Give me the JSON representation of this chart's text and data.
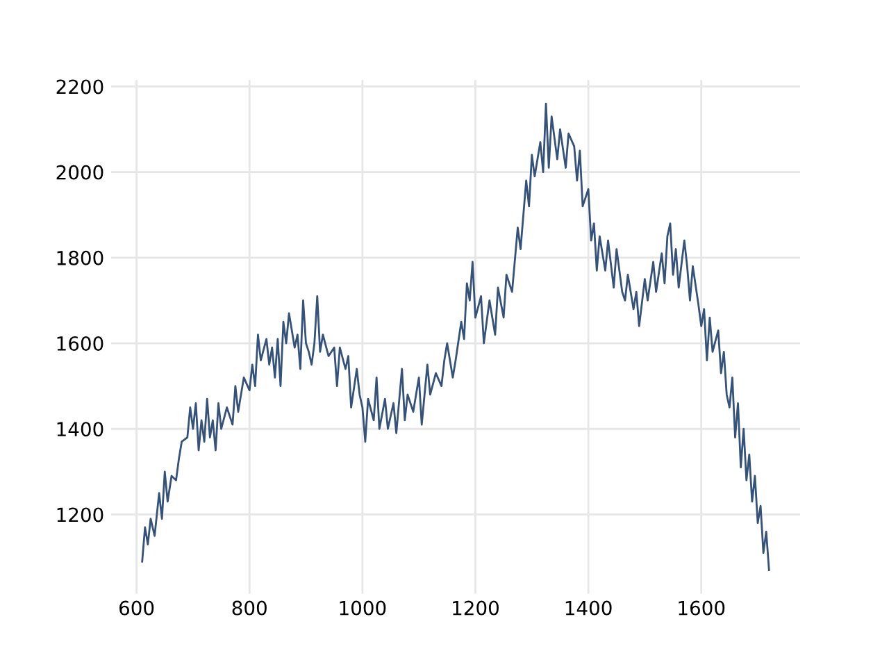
{
  "chart_data": {
    "type": "line",
    "x": [
      610,
      615,
      620,
      625,
      632,
      640,
      645,
      650,
      655,
      662,
      670,
      675,
      680,
      690,
      695,
      700,
      705,
      710,
      715,
      720,
      725,
      730,
      735,
      740,
      745,
      750,
      760,
      770,
      775,
      780,
      790,
      800,
      805,
      810,
      815,
      820,
      830,
      835,
      840,
      845,
      850,
      855,
      860,
      865,
      870,
      880,
      885,
      890,
      895,
      900,
      905,
      910,
      915,
      920,
      925,
      930,
      940,
      950,
      955,
      960,
      970,
      975,
      980,
      990,
      995,
      1000,
      1005,
      1010,
      1020,
      1025,
      1030,
      1040,
      1045,
      1055,
      1060,
      1070,
      1075,
      1080,
      1090,
      1100,
      1105,
      1115,
      1120,
      1130,
      1140,
      1145,
      1150,
      1160,
      1165,
      1175,
      1180,
      1185,
      1190,
      1195,
      1200,
      1210,
      1215,
      1225,
      1235,
      1240,
      1250,
      1255,
      1260,
      1265,
      1275,
      1280,
      1290,
      1295,
      1300,
      1305,
      1315,
      1320,
      1325,
      1330,
      1335,
      1345,
      1350,
      1360,
      1365,
      1375,
      1380,
      1385,
      1390,
      1400,
      1405,
      1410,
      1415,
      1420,
      1430,
      1435,
      1445,
      1450,
      1460,
      1465,
      1470,
      1480,
      1485,
      1490,
      1500,
      1505,
      1515,
      1520,
      1530,
      1535,
      1540,
      1545,
      1550,
      1555,
      1560,
      1570,
      1575,
      1580,
      1585,
      1595,
      1600,
      1605,
      1610,
      1615,
      1620,
      1630,
      1635,
      1640,
      1645,
      1650,
      1655,
      1660,
      1665,
      1670,
      1675,
      1680,
      1685,
      1690,
      1695,
      1700,
      1705,
      1710,
      1715,
      1720
    ],
    "series": [
      {
        "color": "#34527a",
        "values": [
          1090,
          1170,
          1130,
          1190,
          1150,
          1250,
          1190,
          1300,
          1230,
          1290,
          1280,
          1330,
          1370,
          1380,
          1450,
          1400,
          1460,
          1350,
          1420,
          1370,
          1470,
          1380,
          1420,
          1350,
          1460,
          1400,
          1450,
          1410,
          1500,
          1440,
          1520,
          1490,
          1550,
          1500,
          1620,
          1560,
          1610,
          1550,
          1590,
          1520,
          1610,
          1500,
          1650,
          1600,
          1670,
          1590,
          1620,
          1540,
          1700,
          1600,
          1580,
          1550,
          1600,
          1710,
          1580,
          1620,
          1570,
          1590,
          1500,
          1590,
          1540,
          1570,
          1450,
          1540,
          1480,
          1450,
          1370,
          1470,
          1420,
          1520,
          1400,
          1470,
          1400,
          1460,
          1390,
          1540,
          1420,
          1480,
          1440,
          1520,
          1410,
          1550,
          1480,
          1530,
          1500,
          1560,
          1600,
          1520,
          1560,
          1650,
          1610,
          1740,
          1700,
          1790,
          1660,
          1710,
          1600,
          1700,
          1620,
          1730,
          1660,
          1760,
          1740,
          1720,
          1870,
          1820,
          1980,
          1920,
          2040,
          1990,
          2070,
          2000,
          2160,
          2010,
          2130,
          2030,
          2100,
          2010,
          2090,
          2060,
          1980,
          2050,
          1920,
          1960,
          1840,
          1880,
          1770,
          1850,
          1770,
          1840,
          1730,
          1820,
          1720,
          1700,
          1760,
          1680,
          1720,
          1640,
          1750,
          1700,
          1790,
          1720,
          1810,
          1740,
          1850,
          1880,
          1760,
          1820,
          1730,
          1840,
          1780,
          1700,
          1780,
          1690,
          1640,
          1680,
          1560,
          1660,
          1580,
          1630,
          1530,
          1580,
          1480,
          1450,
          1520,
          1380,
          1460,
          1310,
          1400,
          1280,
          1340,
          1230,
          1290,
          1180,
          1220,
          1110,
          1160,
          1070
        ]
      }
    ],
    "xlim": [
      555,
      1775
    ],
    "ylim": [
      1015,
      2215
    ],
    "xticks": [
      600,
      800,
      1000,
      1200,
      1400,
      1600
    ],
    "yticks": [
      1200,
      1400,
      1600,
      1800,
      2000,
      2200
    ],
    "grid": true,
    "marker": "none",
    "line_style": "solid"
  }
}
